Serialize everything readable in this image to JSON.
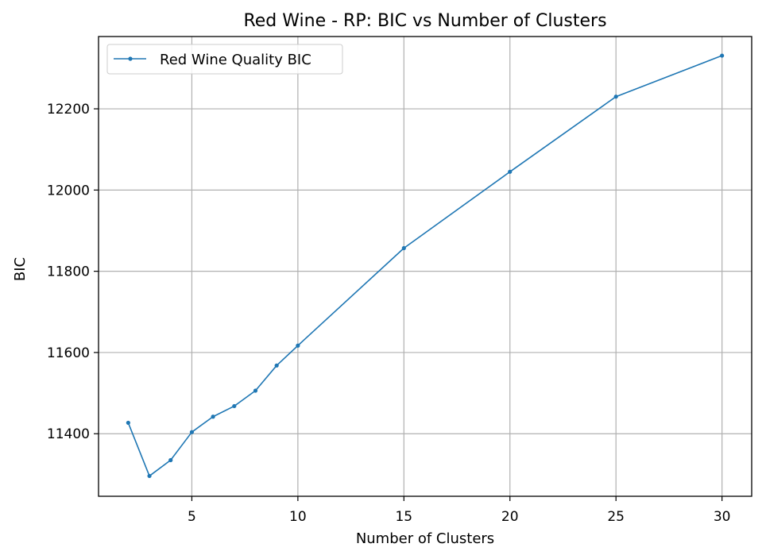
{
  "chart_data": {
    "type": "line",
    "title": "Red Wine - RP: BIC vs Number of Clusters",
    "xlabel": "Number of Clusters",
    "ylabel": "BIC",
    "xlim": [
      0.6,
      31.4
    ],
    "ylim": [
      11246,
      12378
    ],
    "xticks": [
      5,
      10,
      15,
      20,
      25,
      30
    ],
    "yticks": [
      11400,
      11600,
      11800,
      12000,
      12200
    ],
    "grid": true,
    "legend_position": "top-left",
    "series": [
      {
        "name": "Red Wine Quality BIC",
        "color": "#1f77b4",
        "marker": "dot",
        "x": [
          2,
          3,
          4,
          5,
          6,
          7,
          8,
          9,
          10,
          15,
          20,
          25,
          30
        ],
        "y": [
          11427,
          11296,
          11335,
          11404,
          11442,
          11468,
          11506,
          11568,
          11617,
          11857,
          12045,
          12230,
          12331
        ]
      }
    ]
  }
}
